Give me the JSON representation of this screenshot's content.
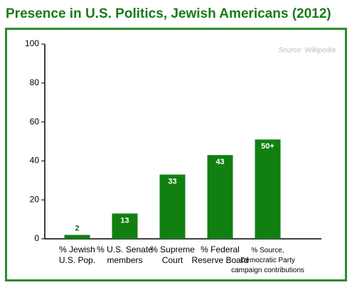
{
  "chart_data": {
    "type": "bar",
    "title": "Presence in U.S. Politics, Jewish Americans (2012)",
    "annotation": "Source: Wikipedia",
    "categories": [
      "% Jewish\nU.S. Pop.",
      "% U.S. Senate\nmembers",
      "% Supreme\nCourt",
      "% Federal\nReserve Board",
      "% Source,\nDemocratic Party\ncampaign contributions"
    ],
    "values": [
      2,
      13,
      33,
      43,
      51
    ],
    "value_labels": [
      "2",
      "13",
      "33",
      "43",
      "50+"
    ],
    "color": "#118011",
    "ylim": [
      0,
      100
    ],
    "yticks": [
      0,
      20,
      40,
      60,
      80,
      100
    ],
    "grid": false
  }
}
